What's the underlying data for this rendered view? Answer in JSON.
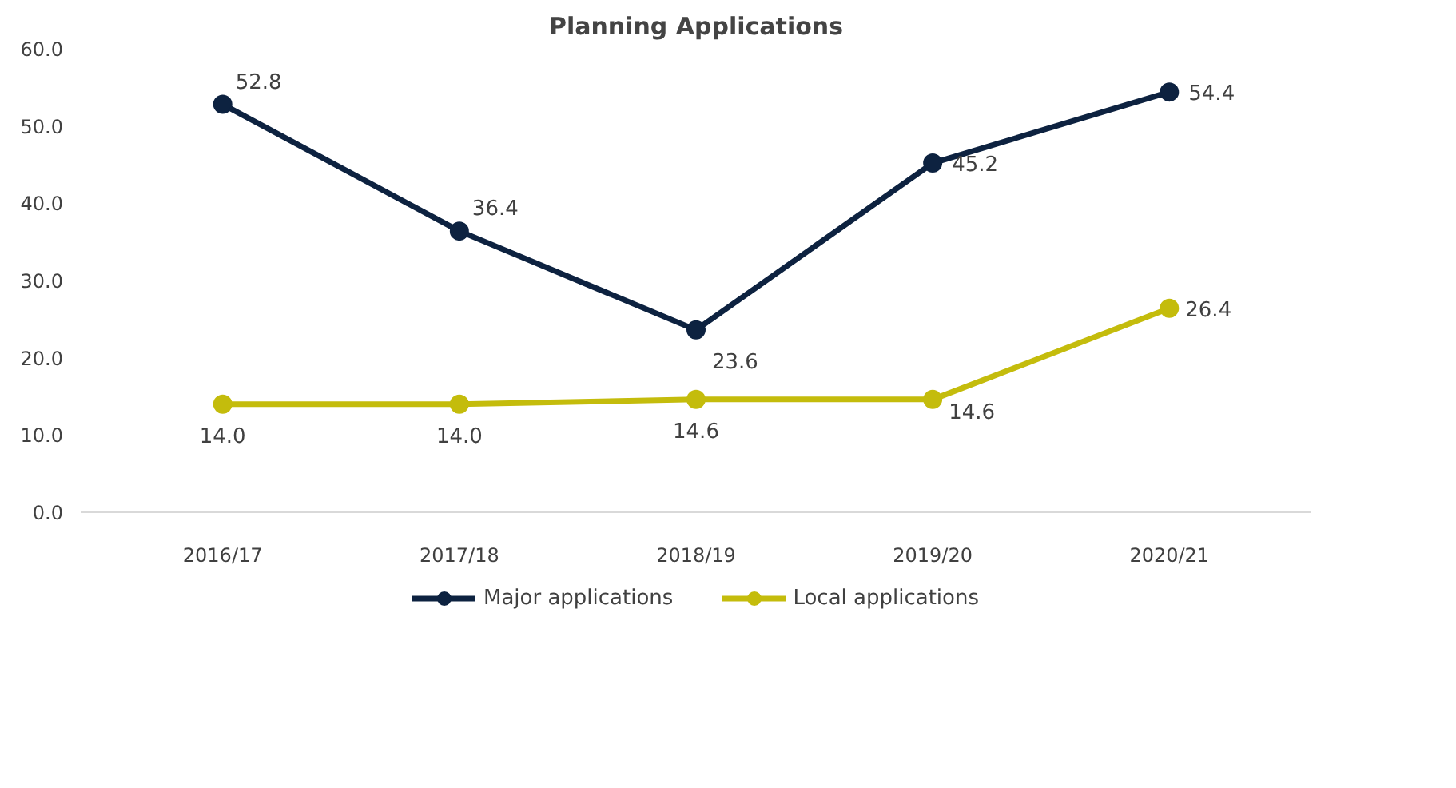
{
  "chart_data": {
    "type": "line",
    "title": "Planning Applications",
    "categories": [
      "2016/17",
      "2017/18",
      "2018/19",
      "2019/20",
      "2020/21"
    ],
    "series": [
      {
        "name": "Major applications",
        "color": "#0d2240",
        "values": [
          52.8,
          36.4,
          23.6,
          45.2,
          54.4
        ],
        "value_labels": [
          "52.8",
          "36.4",
          "23.6",
          "45.2",
          "54.4"
        ]
      },
      {
        "name": "Local applications",
        "color": "#c4bc0c",
        "values": [
          14.0,
          14.0,
          14.6,
          14.6,
          26.4
        ],
        "value_labels": [
          "14.0",
          "14.0",
          "14.6",
          "14.6",
          "26.4"
        ]
      }
    ],
    "ylim": [
      0,
      60
    ],
    "yticks": [
      {
        "value": 0,
        "label": "0.0"
      },
      {
        "value": 10,
        "label": "10.0"
      },
      {
        "value": 20,
        "label": "20.0"
      },
      {
        "value": 30,
        "label": "30.0"
      },
      {
        "value": 40,
        "label": "40.0"
      },
      {
        "value": 50,
        "label": "50.0"
      },
      {
        "value": 60,
        "label": "60.0"
      }
    ],
    "grid": false,
    "legend": "bottom",
    "marker": "circle",
    "line_style": "solid"
  }
}
